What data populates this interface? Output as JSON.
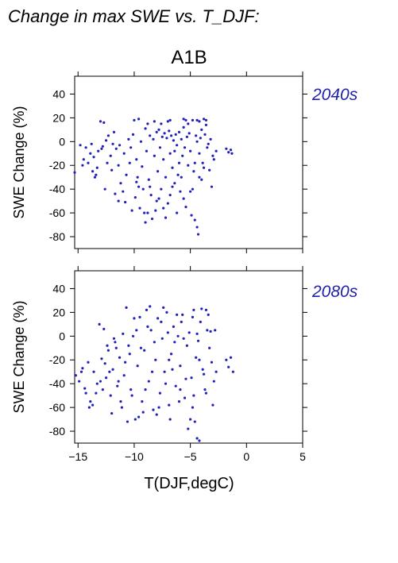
{
  "figure": {
    "title": "Change in max SWE vs. T_DJF:",
    "scenario": "A1B",
    "xlabel": "T(DJF,degC)",
    "ylabel": "SWE Change (%)",
    "point_color": "#2222BB",
    "label_color": "#2222AA"
  },
  "chart_data": [
    {
      "type": "scatter",
      "period_label": "2040s",
      "xlabel": "",
      "ylabel": "SWE Change (%)",
      "xlim": [
        -15.3,
        5
      ],
      "ylim": [
        -90,
        55
      ],
      "xticks": [
        -15,
        -10,
        -5,
        0,
        5
      ],
      "yticks": [
        40,
        20,
        0,
        -20,
        -40,
        -60,
        -80
      ],
      "show_x_tick_labels": false,
      "grid": false,
      "points": [
        [
          -15.3,
          -26
        ],
        [
          -14.8,
          -3
        ],
        [
          -14.6,
          -20
        ],
        [
          -14.3,
          -5
        ],
        [
          -14.1,
          -18
        ],
        [
          -13.9,
          -10
        ],
        [
          -13.7,
          -25
        ],
        [
          -13.5,
          -30
        ],
        [
          -13.3,
          -22
        ],
        [
          -13.0,
          17
        ],
        [
          -12.7,
          16
        ],
        [
          -13.2,
          -8
        ],
        [
          -12.8,
          -4
        ],
        [
          -12.5,
          1
        ],
        [
          -12.3,
          5
        ],
        [
          -12.1,
          -12
        ],
        [
          -11.9,
          -2
        ],
        [
          -11.8,
          8
        ],
        [
          -11.6,
          -6
        ],
        [
          -11.4,
          -20
        ],
        [
          -11.2,
          -35
        ],
        [
          -11.0,
          -42
        ],
        [
          -10.9,
          -10
        ],
        [
          -10.7,
          -28
        ],
        [
          -10.5,
          2
        ],
        [
          -10.3,
          -5
        ],
        [
          -10.1,
          6
        ],
        [
          -9.9,
          -47
        ],
        [
          -9.8,
          -15
        ],
        [
          -9.6,
          -38
        ],
        [
          -9.5,
          -56
        ],
        [
          -9.3,
          -21
        ],
        [
          -9.1,
          -60
        ],
        [
          -9.0,
          11
        ],
        [
          -8.9,
          -8
        ],
        [
          -8.7,
          -32
        ],
        [
          -8.6,
          5
        ],
        [
          -8.5,
          -45
        ],
        [
          -8.3,
          2
        ],
        [
          -8.2,
          -12
        ],
        [
          -8.1,
          -58
        ],
        [
          -8.0,
          8
        ],
        [
          -7.9,
          -25
        ],
        [
          -7.8,
          10
        ],
        [
          -7.7,
          -5
        ],
        [
          -7.6,
          -40
        ],
        [
          -7.5,
          4
        ],
        [
          -7.4,
          -15
        ],
        [
          -7.3,
          7
        ],
        [
          -7.2,
          -30
        ],
        [
          -7.1,
          3
        ],
        [
          -7.0,
          -52
        ],
        [
          -6.9,
          9
        ],
        [
          -6.8,
          -10
        ],
        [
          -6.7,
          5
        ],
        [
          -6.6,
          -22
        ],
        [
          -6.5,
          1
        ],
        [
          -6.4,
          -35
        ],
        [
          -6.3,
          6
        ],
        [
          -6.2,
          -3
        ],
        [
          -6.1,
          -28
        ],
        [
          -6.0,
          8
        ],
        [
          -5.9,
          -42
        ],
        [
          -5.8,
          2
        ],
        [
          -5.7,
          -12
        ],
        [
          -5.6,
          12
        ],
        [
          -5.5,
          -5
        ],
        [
          -5.4,
          -55
        ],
        [
          -5.3,
          4
        ],
        [
          -5.2,
          -20
        ],
        [
          -5.1,
          7
        ],
        [
          -5.0,
          -8
        ],
        [
          -4.9,
          -62
        ],
        [
          -4.8,
          18
        ],
        [
          -4.7,
          -25
        ],
        [
          -4.6,
          -66
        ],
        [
          -4.5,
          5
        ],
        [
          -4.4,
          -72
        ],
        [
          -4.3,
          -78
        ],
        [
          -4.2,
          -10
        ],
        [
          -4.1,
          3
        ],
        [
          -4.0,
          -32
        ],
        [
          -3.9,
          -18
        ],
        [
          -3.7,
          6
        ],
        [
          -3.5,
          -5
        ],
        [
          -3.3,
          -24
        ],
        [
          -3.1,
          -38
        ],
        [
          -2.9,
          -15
        ],
        [
          -2.7,
          -8
        ],
        [
          -1.8,
          -6
        ],
        [
          -1.6,
          -9
        ],
        [
          -1.4,
          -7
        ],
        [
          -1.3,
          -10
        ],
        [
          -14.5,
          -15
        ],
        [
          -13.8,
          -2
        ],
        [
          -13.4,
          -28
        ],
        [
          -12.9,
          -6
        ],
        [
          -12.4,
          -18
        ],
        [
          -12.0,
          -24
        ],
        [
          -11.7,
          -44
        ],
        [
          -11.3,
          -3
        ],
        [
          -10.8,
          -51
        ],
        [
          -10.4,
          -18
        ],
        [
          -10.0,
          18
        ],
        [
          -9.7,
          -30
        ],
        [
          -9.4,
          0
        ],
        [
          -9.2,
          -40
        ],
        [
          -8.8,
          15
        ],
        [
          -8.4,
          -65
        ],
        [
          -8.0,
          -50
        ],
        [
          -7.6,
          15
        ],
        [
          -7.2,
          -64
        ],
        [
          -6.8,
          -45
        ],
        [
          -6.4,
          -8
        ],
        [
          -6.0,
          -18
        ],
        [
          -5.6,
          -48
        ],
        [
          -5.2,
          15
        ],
        [
          -4.8,
          -40
        ],
        [
          -4.4,
          0
        ],
        [
          -4.0,
          10
        ],
        [
          -3.6,
          14
        ],
        [
          -3.8,
          -22
        ],
        [
          -4.2,
          -30
        ],
        [
          -6.2,
          -60
        ],
        [
          -7.4,
          -56
        ],
        [
          -8.6,
          -38
        ],
        [
          -9.8,
          -34
        ],
        [
          -11.4,
          -50
        ],
        [
          -12.6,
          -40
        ],
        [
          -13.6,
          -13
        ],
        [
          -10.2,
          -58
        ],
        [
          -9.0,
          -68
        ],
        [
          -8.8,
          -60
        ],
        [
          -7.8,
          -48
        ],
        [
          -6.6,
          -38
        ],
        [
          -5.8,
          -30
        ],
        [
          -5.0,
          -42
        ],
        [
          -4.6,
          -18
        ],
        [
          -3.4,
          -2
        ],
        [
          -3.2,
          2
        ],
        [
          -3.0,
          -12
        ],
        [
          -5.4,
          18
        ],
        [
          -6.8,
          18
        ],
        [
          -8.2,
          17
        ],
        [
          -9.6,
          19
        ],
        [
          -7.0,
          17
        ],
        [
          -5.6,
          19
        ],
        [
          -4.4,
          18
        ],
        [
          -3.6,
          18
        ],
        [
          -3.8,
          19
        ],
        [
          -4.2,
          17
        ]
      ]
    },
    {
      "type": "scatter",
      "period_label": "2080s",
      "xlabel": "T(DJF,degC)",
      "ylabel": "SWE Change (%)",
      "xlim": [
        -15.3,
        5
      ],
      "ylim": [
        -90,
        55
      ],
      "xticks": [
        -15,
        -10,
        -5,
        0,
        5
      ],
      "xtick_labels": [
        "−15",
        "−10",
        "−5",
        "0",
        "5"
      ],
      "yticks": [
        40,
        20,
        0,
        -20,
        -40,
        -60,
        -80
      ],
      "show_x_tick_labels": true,
      "grid": false,
      "points": [
        [
          -15.2,
          -33
        ],
        [
          -14.9,
          -38
        ],
        [
          -14.6,
          -27
        ],
        [
          -14.4,
          -44
        ],
        [
          -14.1,
          -22
        ],
        [
          -13.9,
          -55
        ],
        [
          -13.6,
          -30
        ],
        [
          -13.4,
          -48
        ],
        [
          -13.1,
          10
        ],
        [
          -12.9,
          -19
        ],
        [
          -12.7,
          6
        ],
        [
          -12.5,
          -35
        ],
        [
          -12.3,
          -12
        ],
        [
          -12.1,
          -50
        ],
        [
          -11.9,
          -28
        ],
        [
          -11.7,
          -5
        ],
        [
          -11.5,
          -42
        ],
        [
          -11.3,
          -18
        ],
        [
          -11.1,
          -60
        ],
        [
          -10.9,
          -33
        ],
        [
          -10.7,
          24
        ],
        [
          -10.5,
          -8
        ],
        [
          -10.3,
          -45
        ],
        [
          -10.1,
          0
        ],
        [
          -9.9,
          -70
        ],
        [
          -9.7,
          -25
        ],
        [
          -9.5,
          16
        ],
        [
          -9.3,
          -55
        ],
        [
          -9.1,
          -12
        ],
        [
          -8.9,
          22
        ],
        [
          -8.7,
          -38
        ],
        [
          -8.5,
          5
        ],
        [
          -8.3,
          -62
        ],
        [
          -8.1,
          -20
        ],
        [
          -7.9,
          15
        ],
        [
          -7.7,
          -48
        ],
        [
          -7.5,
          -2
        ],
        [
          -7.3,
          -30
        ],
        [
          -7.1,
          20
        ],
        [
          -6.9,
          -58
        ],
        [
          -6.7,
          -15
        ],
        [
          -6.5,
          8
        ],
        [
          -6.3,
          -42
        ],
        [
          -6.1,
          0
        ],
        [
          -5.9,
          -25
        ],
        [
          -5.7,
          18
        ],
        [
          -5.5,
          -52
        ],
        [
          -5.3,
          -8
        ],
        [
          -5.1,
          3
        ],
        [
          -4.9,
          -35
        ],
        [
          -4.7,
          22
        ],
        [
          -4.5,
          -18
        ],
        [
          -4.3,
          -4
        ],
        [
          -4.1,
          12
        ],
        [
          -3.9,
          -28
        ],
        [
          -3.7,
          -45
        ],
        [
          -3.5,
          5
        ],
        [
          -3.3,
          -10
        ],
        [
          -3.1,
          -22
        ],
        [
          -2.9,
          -38
        ],
        [
          -2.7,
          -30
        ],
        [
          -1.8,
          -20
        ],
        [
          -1.6,
          -26
        ],
        [
          -1.4,
          -18
        ],
        [
          -1.2,
          -30
        ],
        [
          -14.7,
          -30
        ],
        [
          -14.0,
          -60
        ],
        [
          -13.3,
          -40
        ],
        [
          -12.6,
          -23
        ],
        [
          -12.0,
          -65
        ],
        [
          -11.4,
          -38
        ],
        [
          -10.8,
          -22
        ],
        [
          -10.2,
          -50
        ],
        [
          -9.6,
          -68
        ],
        [
          -9.0,
          -45
        ],
        [
          -8.4,
          -30
        ],
        [
          -7.8,
          -60
        ],
        [
          -7.2,
          -40
        ],
        [
          -6.6,
          -28
        ],
        [
          -6.0,
          -55
        ],
        [
          -5.4,
          -36
        ],
        [
          -4.8,
          -60
        ],
        [
          -4.2,
          -20
        ],
        [
          -3.6,
          -48
        ],
        [
          -3.0,
          -58
        ],
        [
          -5.0,
          -70
        ],
        [
          -4.6,
          -72
        ],
        [
          -4.4,
          -86
        ],
        [
          -4.2,
          -88
        ],
        [
          -5.2,
          -78
        ],
        [
          -6.8,
          -70
        ],
        [
          -8.0,
          -66
        ],
        [
          -9.2,
          -64
        ],
        [
          -10.6,
          -72
        ],
        [
          -11.2,
          -55
        ],
        [
          -12.8,
          -45
        ],
        [
          -13.7,
          -58
        ],
        [
          -10.0,
          15
        ],
        [
          -8.6,
          25
        ],
        [
          -7.4,
          24
        ],
        [
          -6.2,
          18
        ],
        [
          -5.8,
          12
        ],
        [
          -4.8,
          16
        ],
        [
          -4.0,
          23
        ],
        [
          -3.6,
          22
        ],
        [
          -3.4,
          18
        ],
        [
          -7.6,
          12
        ],
        [
          -8.8,
          8
        ],
        [
          -9.8,
          5
        ],
        [
          -11.0,
          2
        ],
        [
          -11.8,
          -2
        ],
        [
          -12.4,
          -8
        ],
        [
          -6.4,
          -5
        ],
        [
          -5.6,
          -2
        ],
        [
          -4.4,
          2
        ],
        [
          -7.0,
          3
        ],
        [
          -8.2,
          -5
        ],
        [
          -9.4,
          -10
        ],
        [
          -10.4,
          -15
        ],
        [
          -11.6,
          -10
        ],
        [
          -12.2,
          -30
        ],
        [
          -13.0,
          -38
        ],
        [
          -14.3,
          -48
        ],
        [
          -6.9,
          -20
        ],
        [
          -5.9,
          -45
        ],
        [
          -4.7,
          -50
        ],
        [
          -3.8,
          -32
        ],
        [
          -3.2,
          4
        ],
        [
          -2.8,
          5
        ]
      ]
    }
  ]
}
